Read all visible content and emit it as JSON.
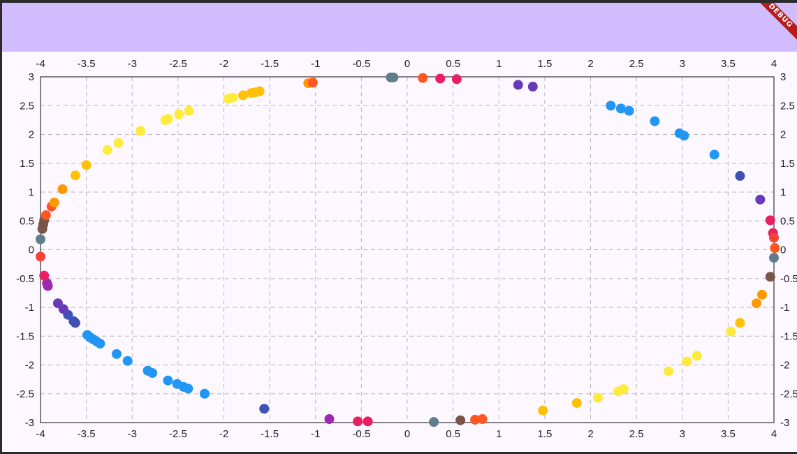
{
  "app": {
    "debug_banner": "DEBUG",
    "appbar_color": "#d0bcff",
    "background": "#fdf7ff"
  },
  "chart_data": {
    "type": "scatter",
    "title": "",
    "xlabel": "",
    "ylabel": "",
    "xlim": [
      -4,
      4
    ],
    "ylim": [
      -3,
      3
    ],
    "x_ticks": [
      -4,
      -3.5,
      -3,
      -2.5,
      -2,
      -1.5,
      -1,
      -0.5,
      0,
      0.5,
      1,
      1.5,
      2,
      2.5,
      3,
      3.5,
      4
    ],
    "y_ticks": [
      3,
      2.5,
      2,
      1.5,
      1,
      0.5,
      0,
      -0.5,
      -1,
      -1.5,
      -2,
      -2.5,
      -3
    ],
    "x_tick_labels": [
      "-4",
      "-3.5",
      "-3",
      "-2.5",
      "-2",
      "-1.5",
      "-1",
      "-0.5",
      "0",
      "0.5",
      "1",
      "1.5",
      "2",
      "2.5",
      "3",
      "3.5",
      "4"
    ],
    "y_tick_labels": [
      "3",
      "2.5",
      "2",
      "1.5",
      "1",
      "0.5",
      "0",
      "-0.5",
      "-1",
      "-1.5",
      "-2",
      "-2.5",
      "-3"
    ],
    "axes": [
      "top",
      "bottom",
      "left",
      "right"
    ],
    "grid": true,
    "grid_style": "dashed",
    "colors": {
      "red": "#f44336",
      "pink": "#e91e63",
      "purple": "#9c27b0",
      "deep_purple": "#673ab7",
      "indigo": "#3f51b5",
      "blue": "#2196f3",
      "yellow": "#ffeb3b",
      "amber": "#ffc107",
      "orange": "#ff9800",
      "deep_orange": "#ff5722",
      "brown": "#795548",
      "blue_grey": "#607d8b"
    },
    "points": [
      {
        "x": -0.18,
        "y": 2.99,
        "color": "blue_grey"
      },
      {
        "x": -0.15,
        "y": 2.99,
        "color": "blue_grey"
      },
      {
        "x": 0.17,
        "y": 2.98,
        "color": "deep_orange"
      },
      {
        "x": 0.36,
        "y": 2.97,
        "color": "pink"
      },
      {
        "x": 0.54,
        "y": 2.96,
        "color": "pink"
      },
      {
        "x": 1.21,
        "y": 2.86,
        "color": "deep_purple"
      },
      {
        "x": 1.37,
        "y": 2.83,
        "color": "deep_purple"
      },
      {
        "x": 2.22,
        "y": 2.5,
        "color": "blue"
      },
      {
        "x": 2.33,
        "y": 2.45,
        "color": "blue"
      },
      {
        "x": 2.42,
        "y": 2.41,
        "color": "blue"
      },
      {
        "x": 2.7,
        "y": 2.23,
        "color": "blue"
      },
      {
        "x": 2.97,
        "y": 2.02,
        "color": "blue"
      },
      {
        "x": 3.02,
        "y": 1.98,
        "color": "blue"
      },
      {
        "x": 3.35,
        "y": 1.65,
        "color": "blue"
      },
      {
        "x": 3.63,
        "y": 1.28,
        "color": "indigo"
      },
      {
        "x": 3.85,
        "y": 0.87,
        "color": "deep_purple"
      },
      {
        "x": 3.96,
        "y": 0.51,
        "color": "pink"
      },
      {
        "x": 3.99,
        "y": 0.29,
        "color": "pink"
      },
      {
        "x": 4.0,
        "y": 0.21,
        "color": "red"
      },
      {
        "x": 4.01,
        "y": 0.03,
        "color": "deep_orange"
      },
      {
        "x": 4.0,
        "y": -0.14,
        "color": "blue_grey"
      },
      {
        "x": 3.96,
        "y": -0.47,
        "color": "brown"
      },
      {
        "x": 3.87,
        "y": -0.78,
        "color": "orange"
      },
      {
        "x": 3.81,
        "y": -0.93,
        "color": "orange"
      },
      {
        "x": 3.63,
        "y": -1.27,
        "color": "amber"
      },
      {
        "x": 3.53,
        "y": -1.42,
        "color": "yellow"
      },
      {
        "x": 3.16,
        "y": -1.84,
        "color": "yellow"
      },
      {
        "x": 3.05,
        "y": -1.94,
        "color": "yellow"
      },
      {
        "x": 2.85,
        "y": -2.11,
        "color": "yellow"
      },
      {
        "x": 2.36,
        "y": -2.42,
        "color": "yellow"
      },
      {
        "x": 2.3,
        "y": -2.46,
        "color": "yellow"
      },
      {
        "x": 2.08,
        "y": -2.57,
        "color": "yellow"
      },
      {
        "x": 1.85,
        "y": -2.66,
        "color": "amber"
      },
      {
        "x": 1.48,
        "y": -2.79,
        "color": "amber"
      },
      {
        "x": 0.82,
        "y": -2.94,
        "color": "deep_orange"
      },
      {
        "x": 0.74,
        "y": -2.95,
        "color": "deep_orange"
      },
      {
        "x": 0.58,
        "y": -2.96,
        "color": "brown"
      },
      {
        "x": 0.29,
        "y": -2.99,
        "color": "blue_grey"
      },
      {
        "x": -0.43,
        "y": -2.98,
        "color": "pink"
      },
      {
        "x": -0.54,
        "y": -2.98,
        "color": "pink"
      },
      {
        "x": -0.85,
        "y": -2.94,
        "color": "purple"
      },
      {
        "x": -1.56,
        "y": -2.76,
        "color": "indigo"
      },
      {
        "x": -2.21,
        "y": -2.5,
        "color": "blue"
      },
      {
        "x": -2.39,
        "y": -2.41,
        "color": "blue"
      },
      {
        "x": -2.44,
        "y": -2.38,
        "color": "blue"
      },
      {
        "x": -2.51,
        "y": -2.33,
        "color": "blue"
      },
      {
        "x": -2.61,
        "y": -2.27,
        "color": "blue"
      },
      {
        "x": -2.78,
        "y": -2.14,
        "color": "blue"
      },
      {
        "x": -2.83,
        "y": -2.1,
        "color": "blue"
      },
      {
        "x": -3.05,
        "y": -1.93,
        "color": "blue"
      },
      {
        "x": -3.17,
        "y": -1.81,
        "color": "blue"
      },
      {
        "x": -3.35,
        "y": -1.63,
        "color": "blue"
      },
      {
        "x": -3.39,
        "y": -1.59,
        "color": "blue"
      },
      {
        "x": -3.43,
        "y": -1.55,
        "color": "blue"
      },
      {
        "x": -3.46,
        "y": -1.52,
        "color": "blue"
      },
      {
        "x": -3.49,
        "y": -1.48,
        "color": "blue"
      },
      {
        "x": -3.62,
        "y": -1.27,
        "color": "indigo"
      },
      {
        "x": -3.64,
        "y": -1.24,
        "color": "indigo"
      },
      {
        "x": -3.7,
        "y": -1.13,
        "color": "indigo"
      },
      {
        "x": -3.75,
        "y": -1.03,
        "color": "deep_purple"
      },
      {
        "x": -3.81,
        "y": -0.93,
        "color": "deep_purple"
      },
      {
        "x": -3.92,
        "y": -0.63,
        "color": "purple"
      },
      {
        "x": -3.93,
        "y": -0.58,
        "color": "purple"
      },
      {
        "x": -3.96,
        "y": -0.45,
        "color": "pink"
      },
      {
        "x": -4.0,
        "y": -0.12,
        "color": "red"
      },
      {
        "x": -4.0,
        "y": 0.18,
        "color": "blue_grey"
      },
      {
        "x": -3.98,
        "y": 0.36,
        "color": "brown"
      },
      {
        "x": -3.97,
        "y": 0.44,
        "color": "brown"
      },
      {
        "x": -3.96,
        "y": 0.51,
        "color": "brown"
      },
      {
        "x": -3.94,
        "y": 0.6,
        "color": "deep_orange"
      },
      {
        "x": -3.88,
        "y": 0.75,
        "color": "deep_orange"
      },
      {
        "x": -3.85,
        "y": 0.82,
        "color": "orange"
      },
      {
        "x": -3.76,
        "y": 1.05,
        "color": "orange"
      },
      {
        "x": -3.62,
        "y": 1.29,
        "color": "amber"
      },
      {
        "x": -3.5,
        "y": 1.47,
        "color": "amber"
      },
      {
        "x": -3.27,
        "y": 1.73,
        "color": "yellow"
      },
      {
        "x": -3.15,
        "y": 1.85,
        "color": "yellow"
      },
      {
        "x": -2.91,
        "y": 2.06,
        "color": "yellow"
      },
      {
        "x": -2.64,
        "y": 2.25,
        "color": "yellow"
      },
      {
        "x": -2.61,
        "y": 2.27,
        "color": "yellow"
      },
      {
        "x": -2.49,
        "y": 2.35,
        "color": "yellow"
      },
      {
        "x": -2.38,
        "y": 2.41,
        "color": "yellow"
      },
      {
        "x": -1.95,
        "y": 2.62,
        "color": "yellow"
      },
      {
        "x": -1.9,
        "y": 2.64,
        "color": "yellow"
      },
      {
        "x": -1.79,
        "y": 2.68,
        "color": "amber"
      },
      {
        "x": -1.7,
        "y": 2.72,
        "color": "amber"
      },
      {
        "x": -1.66,
        "y": 2.73,
        "color": "amber"
      },
      {
        "x": -1.61,
        "y": 2.75,
        "color": "amber"
      },
      {
        "x": -1.08,
        "y": 2.89,
        "color": "orange"
      },
      {
        "x": -1.03,
        "y": 2.9,
        "color": "deep_orange"
      }
    ]
  }
}
